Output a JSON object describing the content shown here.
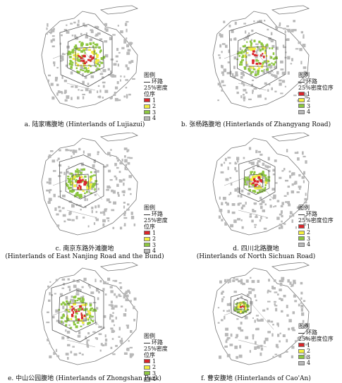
{
  "legend": {
    "title": "图例",
    "ring_road": "环路",
    "quantile": "25%密度位序",
    "classes": [
      "1",
      "2",
      "3",
      "4"
    ],
    "colors": [
      "#d9262b",
      "#f2ee3d",
      "#8cc63f",
      "#b8b8b8"
    ]
  },
  "panels": [
    {
      "label": "a. 陆家嘴腹地 (Hinterlands of Lujiazui)",
      "label2": ""
    },
    {
      "label": "b. 张杨路腹地 (Hinterlands of Zhangyang Road)",
      "label2": ""
    },
    {
      "label": "c. 南京东路外滩腹地",
      "label2": "(Hinterlands of East Nanjing Road and the Bund)"
    },
    {
      "label": "d. 四川北路腹地",
      "label2": "(Hinterlands of North Sichuan Road)"
    },
    {
      "label": "e. 中山公园腹地 (Hinterlands of Zhongshan Park)",
      "label2": ""
    },
    {
      "label": "f. 曹安腹地 (Hinterlands of Cao'An)",
      "label2": ""
    }
  ]
}
